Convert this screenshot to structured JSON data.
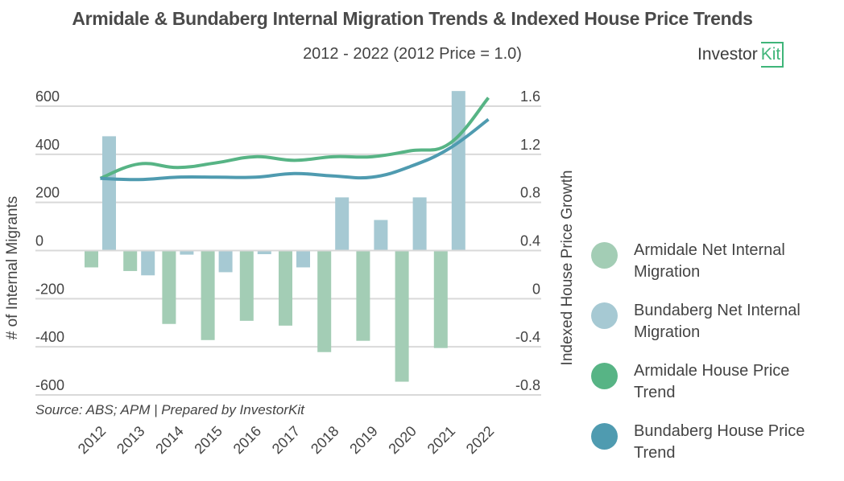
{
  "header": {
    "title": "Armidale & Bundaberg Internal Migration Trends & Indexed House Price Trends",
    "subtitle": "2012 - 2022 (2012 Price = 1.0)",
    "logo_text": "Investor",
    "logo_badge": "Kit"
  },
  "source": "Source: ABS; APM | Prepared by InvestorKit",
  "chart_data": {
    "type": "bar",
    "title": "Armidale & Bundaberg Internal Migration Trends & Indexed House Price Trends",
    "subtitle": "2012 - 2022 (2012 Price = 1.0)",
    "categories": [
      "2012",
      "2013",
      "2014",
      "2015",
      "2016",
      "2017",
      "2018",
      "2019",
      "2020",
      "2021",
      "2022"
    ],
    "ylabel": "# of Internal Migrants",
    "y2label": "Indexed House Price Growth",
    "ylim": [
      -600,
      600
    ],
    "y2lim": [
      -0.8,
      1.6
    ],
    "yticks": [
      "600",
      "400",
      "200",
      "0",
      "-200",
      "-400",
      "-600"
    ],
    "y2ticks": [
      "1.6",
      "1.2",
      "0.8",
      "0.4",
      "0",
      "-0.4",
      "-0.8"
    ],
    "grid": true,
    "legend_position": "right",
    "series": [
      {
        "name": "Armidale Net Internal Migration",
        "kind": "bar",
        "axis": "left",
        "color": "#a3cdb5",
        "values": [
          -70,
          -85,
          -305,
          -372,
          -292,
          -312,
          -422,
          -375,
          -545,
          -405,
          null
        ]
      },
      {
        "name": "Bundaberg Net Internal Migration",
        "kind": "bar",
        "axis": "left",
        "color": "#a6c9d3",
        "values": [
          475,
          -103,
          -17,
          -90,
          -15,
          -70,
          221,
          127,
          221,
          663,
          null
        ]
      },
      {
        "name": "Armidale House Price Trend",
        "kind": "line",
        "axis": "right",
        "color": "#57b485",
        "values": [
          1.0,
          1.12,
          1.09,
          1.13,
          1.18,
          1.15,
          1.18,
          1.18,
          1.23,
          1.29,
          1.67
        ]
      },
      {
        "name": "Bundaberg House Price Trend",
        "kind": "line",
        "axis": "right",
        "color": "#4f9bb0",
        "values": [
          1.0,
          0.99,
          1.01,
          1.01,
          1.01,
          1.04,
          1.02,
          1.01,
          1.1,
          1.25,
          1.49
        ]
      }
    ]
  },
  "legend": [
    {
      "label": "Armidale Net Internal Migration",
      "color": "#a3cdb5"
    },
    {
      "label": "Bundaberg Net Internal Migration",
      "color": "#a6c9d3"
    },
    {
      "label": "Armidale House Price Trend",
      "color": "#57b485"
    },
    {
      "label": "Bundaberg House Price Trend",
      "color": "#4f9bb0"
    }
  ]
}
